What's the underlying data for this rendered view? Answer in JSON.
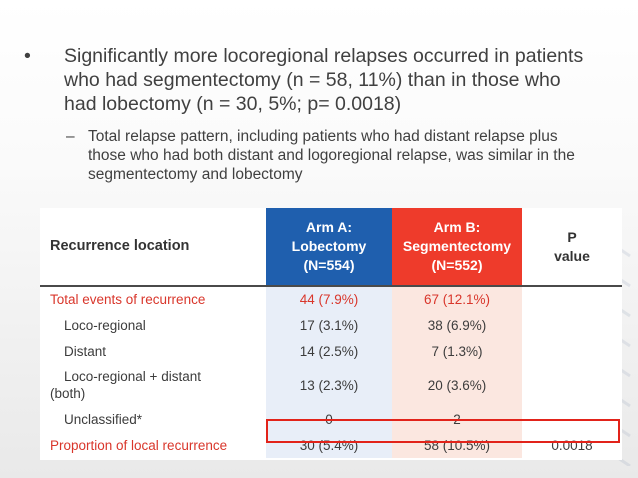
{
  "bullets": {
    "main": "Significantly more locoregional relapses occurred in patients who had segmentectomy (n = 58, 11%) than in those who had lobectomy (n = 30, 5%; p= 0.0018)",
    "sub": "Total relapse pattern, including patients who had distant relapse plus those who had both distant and logoregional relapse, was similar in the segmentectomy and lobectomy",
    "bullet_glyph": "•",
    "dash_glyph": "–"
  },
  "table": {
    "header": {
      "location": "Recurrence location",
      "arm_a": [
        "Arm A:",
        "Lobectomy",
        "(N=554)"
      ],
      "arm_b": [
        "Arm B:",
        "Segmentectomy",
        "(N=552)"
      ],
      "p": [
        "P",
        "value"
      ]
    },
    "rows": [
      {
        "label": "Total events of recurrence",
        "a": "44 (7.9%)",
        "b": "67 (12.1%)",
        "p": ""
      },
      {
        "label": "Loco-regional",
        "a": "17 (3.1%)",
        "b": "38 (6.9%)",
        "p": ""
      },
      {
        "label": "Distant",
        "a": "14 (2.5%)",
        "b": "7 (1.3%)",
        "p": ""
      },
      {
        "label_lines": [
          "Loco-regional + distant",
          "(both)"
        ],
        "a": "13 (2.3%)",
        "b": "20 (3.6%)",
        "p": ""
      },
      {
        "label": "Unclassified*",
        "a": "0",
        "b": "2",
        "p": ""
      },
      {
        "label": "Proportion of local recurrence",
        "a": "30 (5.4%)",
        "b": "58 (10.5%)",
        "p": "0.0018"
      }
    ]
  },
  "colors": {
    "arm_a_header": "#1f5fae",
    "arm_b_header": "#ee3b2b",
    "highlight_box": "#e2231a",
    "red_text": "#d9362b"
  }
}
